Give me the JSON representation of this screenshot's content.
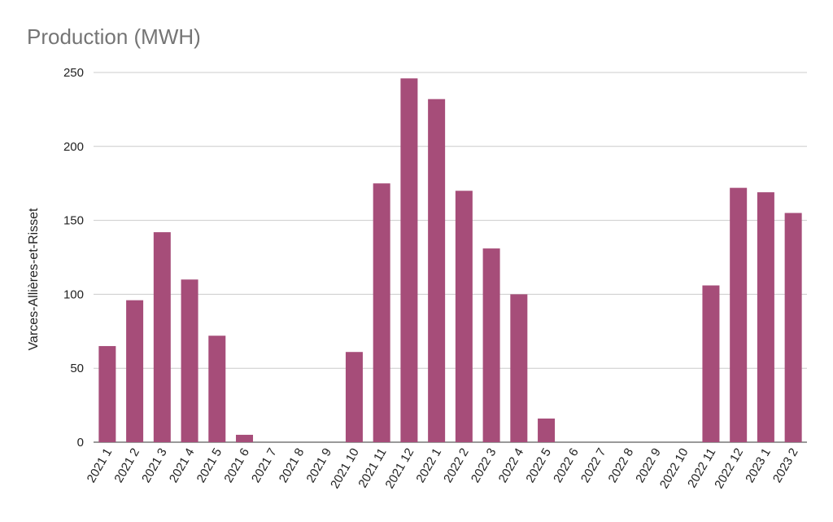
{
  "chart_data": {
    "type": "bar",
    "title": "Production (MWH)",
    "xlabel": "",
    "ylabel": "Varces-Allières-et-Risset",
    "ylim": [
      0,
      250
    ],
    "yticks": [
      0,
      50,
      100,
      150,
      200,
      250
    ],
    "grid": true,
    "legend": "none",
    "bar_color": "#a64d79",
    "categories": [
      "2021 1",
      "2021 2",
      "2021 3",
      "2021 4",
      "2021 5",
      "2021 6",
      "2021 7",
      "2021 8",
      "2021 9",
      "2021 10",
      "2021 11",
      "2021 12",
      "2022 1",
      "2022 2",
      "2022 3",
      "2022 4",
      "2022 5",
      "2022 6",
      "2022 7",
      "2022 8",
      "2022 9",
      "2022 10",
      "2022 11",
      "2022 12",
      "2023 1",
      "2023 2"
    ],
    "values": [
      65,
      96,
      142,
      110,
      72,
      5,
      0,
      0,
      0,
      61,
      175,
      246,
      232,
      170,
      131,
      100,
      16,
      0,
      0,
      0,
      0,
      0,
      106,
      172,
      169,
      155
    ]
  }
}
